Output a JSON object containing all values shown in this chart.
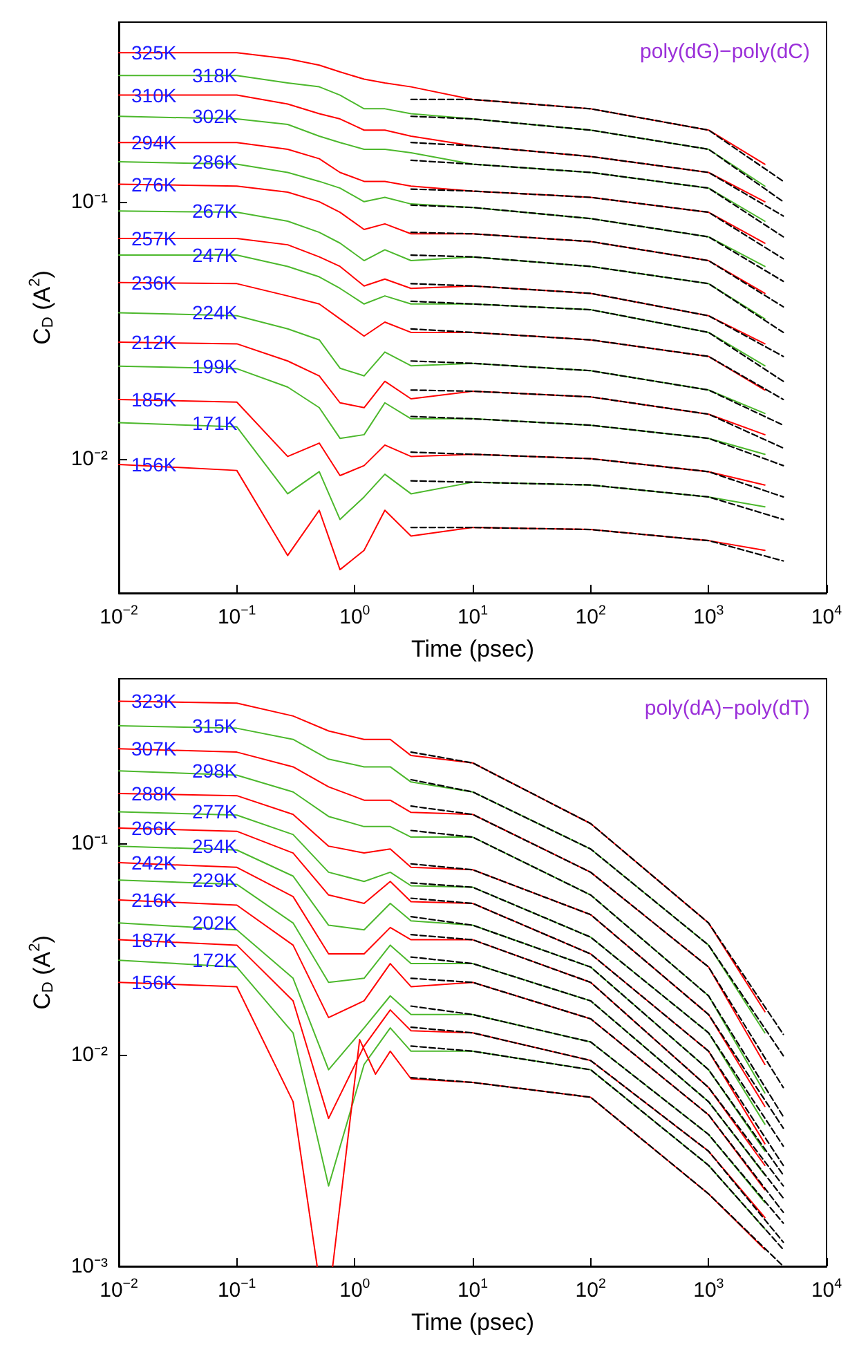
{
  "chart_data": [
    {
      "type": "line",
      "xlabel": "Time (psec)",
      "ylabel": "C$_{D}$ (A$^{2}$)",
      "annotations": [
        "poly(dG)−poly(dC)"
      ],
      "log": "xy",
      "marker": "none",
      "xlim": [
        0.01,
        10000
      ],
      "ylim": [
        0.003,
        0.5
      ],
      "xticks": [
        {
          "value": 0.01,
          "label": "10$^{−2}$"
        },
        {
          "value": 0.1,
          "label": "10$^{−1}$"
        },
        {
          "value": 1,
          "label": "10$^{0}$"
        },
        {
          "value": 10,
          "label": "10$^{1}$"
        },
        {
          "value": 100,
          "label": "10$^{2}$"
        },
        {
          "value": 1000,
          "label": "10$^{3}$"
        },
        {
          "value": 10000,
          "label": "10$^{4}$"
        }
      ],
      "yticks": [
        {
          "value": 0.01,
          "label": "10⁻²"
        },
        {
          "value": 0.1,
          "label": "10⁻¹"
        }
      ],
      "x": [
        0.01,
        0.1,
        0.27,
        0.5,
        0.75,
        1.2,
        1.8,
        3,
        10,
        100,
        1000,
        3000
      ],
      "series": [
        {
          "name": "325K",
          "color": "#ff0000",
          "values": [
            0.38,
            0.38,
            0.36,
            0.34,
            0.32,
            0.3,
            0.29,
            0.28,
            0.25,
            0.23,
            0.19,
            0.14
          ]
        },
        {
          "name": "318K",
          "color": "#4cb82c",
          "values": [
            0.31,
            0.31,
            0.29,
            0.28,
            0.26,
            0.23,
            0.23,
            0.22,
            0.21,
            0.19,
            0.16,
            0.115
          ]
        },
        {
          "name": "310K",
          "color": "#ff0000",
          "values": [
            0.26,
            0.26,
            0.24,
            0.22,
            0.21,
            0.19,
            0.19,
            0.18,
            0.165,
            0.15,
            0.13,
            0.1
          ]
        },
        {
          "name": "302K",
          "color": "#4cb82c",
          "values": [
            0.215,
            0.21,
            0.2,
            0.18,
            0.17,
            0.16,
            0.16,
            0.155,
            0.14,
            0.13,
            0.113,
            0.084
          ]
        },
        {
          "name": "294K",
          "color": "#ff0000",
          "values": [
            0.17,
            0.17,
            0.16,
            0.147,
            0.13,
            0.12,
            0.12,
            0.115,
            0.11,
            0.104,
            0.091,
            0.069
          ]
        },
        {
          "name": "286K",
          "color": "#4cb82c",
          "values": [
            0.143,
            0.14,
            0.13,
            0.12,
            0.113,
            0.1,
            0.104,
            0.098,
            0.095,
            0.086,
            0.073,
            0.056
          ]
        },
        {
          "name": "276K",
          "color": "#ff0000",
          "values": [
            0.117,
            0.115,
            0.109,
            0.1,
            0.091,
            0.078,
            0.082,
            0.075,
            0.075,
            0.07,
            0.059,
            0.044
          ]
        },
        {
          "name": "267K",
          "color": "#4cb82c",
          "values": [
            0.092,
            0.091,
            0.084,
            0.076,
            0.069,
            0.059,
            0.065,
            0.059,
            0.061,
            0.056,
            0.048,
            0.035
          ]
        },
        {
          "name": "257K",
          "color": "#ff0000",
          "values": [
            0.072,
            0.072,
            0.068,
            0.061,
            0.056,
            0.047,
            0.05,
            0.046,
            0.047,
            0.044,
            0.036,
            0.028
          ]
        },
        {
          "name": "247K",
          "color": "#4cb82c",
          "values": [
            0.062,
            0.062,
            0.056,
            0.051,
            0.046,
            0.04,
            0.043,
            0.04,
            0.04,
            0.038,
            0.031,
            0.023
          ]
        },
        {
          "name": "236K",
          "color": "#ff0000",
          "values": [
            0.0485,
            0.048,
            0.043,
            0.04,
            0.035,
            0.03,
            0.034,
            0.031,
            0.031,
            0.029,
            0.025,
            0.0185
          ]
        },
        {
          "name": "224K",
          "color": "#4cb82c",
          "values": [
            0.037,
            0.036,
            0.032,
            0.029,
            0.0225,
            0.021,
            0.026,
            0.023,
            0.0235,
            0.022,
            0.0185,
            0.015
          ]
        },
        {
          "name": "212K",
          "color": "#ff0000",
          "values": [
            0.0284,
            0.028,
            0.024,
            0.021,
            0.0165,
            0.0158,
            0.02,
            0.0171,
            0.0183,
            0.0174,
            0.0149,
            0.0124
          ]
        },
        {
          "name": "199K",
          "color": "#4cb82c",
          "values": [
            0.0229,
            0.0224,
            0.019,
            0.0158,
            0.012,
            0.0124,
            0.0165,
            0.0143,
            0.0143,
            0.0135,
            0.012,
            0.0104
          ]
        },
        {
          "name": "185K",
          "color": "#ff0000",
          "values": [
            0.017,
            0.0166,
            0.0102,
            0.0115,
            0.0086,
            0.0094,
            0.0113,
            0.0102,
            0.0104,
            0.01,
            0.0089,
            0.0079
          ]
        },
        {
          "name": "171K",
          "color": "#4cb82c",
          "values": [
            0.0138,
            0.0133,
            0.0073,
            0.0089,
            0.0058,
            0.0071,
            0.0087,
            0.0073,
            0.0081,
            0.0079,
            0.0071,
            0.0065
          ]
        },
        {
          "name": "156K",
          "color": "#ff0000",
          "values": [
            0.0095,
            0.009,
            0.0042,
            0.0063,
            0.0037,
            0.0044,
            0.0063,
            0.005,
            0.0054,
            0.0053,
            0.0048,
            0.0044
          ]
        },
        {
          "type": "line",
          "line_style": "dashed",
          "color": "#000000",
          "x": [
            3,
            10,
            100,
            1000,
            4300
          ],
          "values": [
            0.25,
            0.25,
            0.23,
            0.19,
            0.12
          ]
        },
        {
          "type": "line",
          "line_style": "dashed",
          "color": "#000000",
          "x": [
            3,
            10,
            100,
            1000,
            4300
          ],
          "values": [
            0.215,
            0.21,
            0.19,
            0.16,
            0.1
          ]
        },
        {
          "type": "line",
          "line_style": "dashed",
          "color": "#000000",
          "x": [
            3,
            10,
            100,
            1000,
            4300
          ],
          "values": [
            0.17,
            0.165,
            0.15,
            0.13,
            0.088
          ]
        },
        {
          "type": "line",
          "line_style": "dashed",
          "color": "#000000",
          "x": [
            3,
            10,
            100,
            1000,
            4300
          ],
          "values": [
            0.145,
            0.14,
            0.13,
            0.113,
            0.073
          ]
        },
        {
          "type": "line",
          "line_style": "dashed",
          "color": "#000000",
          "x": [
            3,
            10,
            100,
            1000,
            4300
          ],
          "values": [
            0.112,
            0.11,
            0.104,
            0.091,
            0.06
          ]
        },
        {
          "type": "line",
          "line_style": "dashed",
          "color": "#000000",
          "x": [
            3,
            10,
            100,
            1000,
            4300
          ],
          "values": [
            0.097,
            0.095,
            0.086,
            0.073,
            0.049
          ]
        },
        {
          "type": "line",
          "line_style": "dashed",
          "color": "#000000",
          "x": [
            3,
            10,
            100,
            1000,
            4300
          ],
          "values": [
            0.076,
            0.075,
            0.07,
            0.059,
            0.039
          ]
        },
        {
          "type": "line",
          "line_style": "dashed",
          "color": "#000000",
          "x": [
            3,
            10,
            100,
            1000,
            4300
          ],
          "values": [
            0.062,
            0.061,
            0.056,
            0.048,
            0.031
          ]
        },
        {
          "type": "line",
          "line_style": "dashed",
          "color": "#000000",
          "x": [
            3,
            10,
            100,
            1000,
            4300
          ],
          "values": [
            0.048,
            0.047,
            0.044,
            0.036,
            0.025
          ]
        },
        {
          "type": "line",
          "line_style": "dashed",
          "color": "#000000",
          "x": [
            3,
            10,
            100,
            1000,
            4300
          ],
          "values": [
            0.041,
            0.04,
            0.038,
            0.031,
            0.02
          ]
        },
        {
          "type": "line",
          "line_style": "dashed",
          "color": "#000000",
          "x": [
            3,
            10,
            100,
            1000,
            4300
          ],
          "values": [
            0.032,
            0.031,
            0.029,
            0.025,
            0.017
          ]
        },
        {
          "type": "line",
          "line_style": "dashed",
          "color": "#000000",
          "x": [
            3,
            10,
            100,
            1000,
            4300
          ],
          "values": [
            0.024,
            0.0235,
            0.022,
            0.0185,
            0.0135
          ]
        },
        {
          "type": "line",
          "line_style": "dashed",
          "color": "#000000",
          "x": [
            3,
            10,
            100,
            1000,
            4300
          ],
          "values": [
            0.0185,
            0.0183,
            0.0174,
            0.0149,
            0.011
          ]
        },
        {
          "type": "line",
          "line_style": "dashed",
          "color": "#000000",
          "x": [
            3,
            10,
            100,
            1000,
            4300
          ],
          "values": [
            0.0146,
            0.0143,
            0.0135,
            0.012,
            0.0094
          ]
        },
        {
          "type": "line",
          "line_style": "dashed",
          "color": "#000000",
          "x": [
            3,
            10,
            100,
            1000,
            4300
          ],
          "values": [
            0.0106,
            0.0104,
            0.01,
            0.0089,
            0.0071
          ]
        },
        {
          "type": "line",
          "line_style": "dashed",
          "color": "#000000",
          "x": [
            3,
            10,
            100,
            1000,
            4300
          ],
          "values": [
            0.0082,
            0.0081,
            0.0079,
            0.0071,
            0.0058
          ]
        },
        {
          "type": "line",
          "line_style": "dashed",
          "color": "#000000",
          "x": [
            3,
            10,
            100,
            1000,
            4300
          ],
          "values": [
            0.0054,
            0.0054,
            0.0053,
            0.0048,
            0.004
          ]
        }
      ]
    },
    {
      "type": "line",
      "xlabel": "Time (psec)",
      "ylabel": "C$_{D}$ (A$^{2}$)",
      "annotations": [
        "poly(dA)−poly(dT)"
      ],
      "log": "xy",
      "marker": "none",
      "xlim": [
        0.01,
        10000
      ],
      "ylim": [
        0.001,
        0.6
      ],
      "xticks": [
        {
          "value": 0.01,
          "label": "10$^{−2}$"
        },
        {
          "value": 0.1,
          "label": "10$^{−1}$"
        },
        {
          "value": 1,
          "label": "10$^{0}$"
        },
        {
          "value": 10,
          "label": "10$^{1}$"
        },
        {
          "value": 100,
          "label": "10$^{2}$"
        },
        {
          "value": 1000,
          "label": "10$^{3}$"
        },
        {
          "value": 10000,
          "label": "10$^{4}$"
        }
      ],
      "yticks": [
        {
          "value": 0.001,
          "label": "10⁻³"
        },
        {
          "value": 0.01,
          "label": "10⁻²"
        },
        {
          "value": 0.1,
          "label": "10⁻¹"
        }
      ],
      "x": [
        0.01,
        0.1,
        0.3,
        0.6,
        1.2,
        2,
        3,
        10,
        100,
        1000,
        3000
      ],
      "series": [
        {
          "name": "323K",
          "color": "#ff0000",
          "values": [
            0.47,
            0.46,
            0.4,
            0.34,
            0.31,
            0.31,
            0.26,
            0.24,
            0.124,
            0.042,
            0.016
          ]
        },
        {
          "name": "315K",
          "color": "#4cb82c",
          "values": [
            0.36,
            0.35,
            0.31,
            0.25,
            0.23,
            0.23,
            0.195,
            0.175,
            0.094,
            0.033,
            0.0127
          ]
        },
        {
          "name": "307K",
          "color": "#ff0000",
          "values": [
            0.28,
            0.27,
            0.23,
            0.185,
            0.16,
            0.16,
            0.14,
            0.137,
            0.073,
            0.026,
            0.009
          ]
        },
        {
          "name": "298K",
          "color": "#4cb82c",
          "values": [
            0.22,
            0.21,
            0.175,
            0.134,
            0.12,
            0.12,
            0.107,
            0.107,
            0.057,
            0.019,
            0.0066
          ]
        },
        {
          "name": "288K",
          "color": "#ff0000",
          "values": [
            0.172,
            0.168,
            0.137,
            0.097,
            0.09,
            0.094,
            0.077,
            0.075,
            0.046,
            0.0155,
            0.0057
          ]
        },
        {
          "name": "277K",
          "color": "#4cb82c",
          "values": [
            0.141,
            0.136,
            0.11,
            0.073,
            0.066,
            0.073,
            0.063,
            0.062,
            0.036,
            0.0127,
            0.0047
          ]
        },
        {
          "name": "266K",
          "color": "#ff0000",
          "values": [
            0.118,
            0.114,
            0.09,
            0.057,
            0.052,
            0.066,
            0.053,
            0.052,
            0.03,
            0.0104,
            0.0038
          ]
        },
        {
          "name": "254K",
          "color": "#4cb82c",
          "values": [
            0.097,
            0.093,
            0.07,
            0.041,
            0.039,
            0.052,
            0.043,
            0.041,
            0.026,
            0.0085,
            0.0035
          ]
        },
        {
          "name": "242K",
          "color": "#ff0000",
          "values": [
            0.081,
            0.077,
            0.056,
            0.03,
            0.03,
            0.04,
            0.035,
            0.035,
            0.022,
            0.007,
            0.003
          ]
        },
        {
          "name": "229K",
          "color": "#4cb82c",
          "values": [
            0.067,
            0.064,
            0.042,
            0.022,
            0.023,
            0.033,
            0.027,
            0.027,
            0.018,
            0.006,
            0.0027
          ]
        },
        {
          "name": "216K",
          "color": "#ff0000",
          "values": [
            0.054,
            0.051,
            0.033,
            0.015,
            0.018,
            0.027,
            0.021,
            0.022,
            0.0148,
            0.0052,
            0.0023
          ]
        },
        {
          "name": "202K",
          "color": "#4cb82c",
          "values": [
            0.042,
            0.039,
            0.023,
            0.0085,
            0.0134,
            0.019,
            0.0155,
            0.0155,
            0.0115,
            0.0042,
            0.002
          ]
        },
        {
          "name": "187K",
          "color": "#ff0000",
          "values": [
            0.035,
            0.033,
            0.018,
            0.005,
            0.011,
            0.0163,
            0.013,
            0.0127,
            0.0094,
            0.0035,
            0.0017
          ]
        },
        {
          "name": "172K",
          "color": "#4cb82c",
          "values": [
            0.028,
            0.026,
            0.0127,
            0.0024,
            0.009,
            0.0134,
            0.0104,
            0.0104,
            0.0085,
            0.003,
            0.0015
          ]
        },
        {
          "name": "156K",
          "color": "#ff0000",
          "x": [
            0.01,
            0.1,
            0.3,
            0.48,
            0.56,
            0.65,
            1.1,
            1.5,
            2,
            3,
            10,
            100,
            1000,
            3000
          ],
          "values": [
            0.022,
            0.021,
            0.006,
            0.001,
            null,
            0.001,
            0.0118,
            0.0081,
            0.0104,
            0.0077,
            0.0074,
            0.0063,
            0.0022,
            0.0012
          ]
        },
        {
          "type": "line",
          "line_style": "dashed",
          "color": "#000000",
          "x": [
            3,
            10,
            100,
            1000,
            4300
          ],
          "values": [
            0.27,
            0.24,
            0.124,
            0.042,
            0.0125
          ]
        },
        {
          "type": "line",
          "line_style": "dashed",
          "color": "#000000",
          "x": [
            3,
            10,
            100,
            1000,
            4300
          ],
          "values": [
            0.2,
            0.175,
            0.094,
            0.033,
            0.0099
          ]
        },
        {
          "type": "line",
          "line_style": "dashed",
          "color": "#000000",
          "x": [
            3,
            10,
            100,
            1000,
            4300
          ],
          "values": [
            0.15,
            0.137,
            0.073,
            0.026,
            0.007
          ]
        },
        {
          "type": "line",
          "line_style": "dashed",
          "color": "#000000",
          "x": [
            3,
            10,
            100,
            1000,
            4300
          ],
          "values": [
            0.115,
            0.107,
            0.057,
            0.019,
            0.0051
          ]
        },
        {
          "type": "line",
          "line_style": "dashed",
          "color": "#000000",
          "x": [
            3,
            10,
            100,
            1000,
            4300
          ],
          "values": [
            0.08,
            0.075,
            0.046,
            0.0155,
            0.0045
          ]
        },
        {
          "type": "line",
          "line_style": "dashed",
          "color": "#000000",
          "x": [
            3,
            10,
            100,
            1000,
            4300
          ],
          "values": [
            0.065,
            0.062,
            0.036,
            0.0127,
            0.0037
          ]
        },
        {
          "type": "line",
          "line_style": "dashed",
          "color": "#000000",
          "x": [
            3,
            10,
            100,
            1000,
            4300
          ],
          "values": [
            0.055,
            0.052,
            0.03,
            0.0104,
            0.003
          ]
        },
        {
          "type": "line",
          "line_style": "dashed",
          "color": "#000000",
          "x": [
            3,
            10,
            100,
            1000,
            4300
          ],
          "values": [
            0.045,
            0.041,
            0.026,
            0.0085,
            0.0027
          ]
        },
        {
          "type": "line",
          "line_style": "dashed",
          "color": "#000000",
          "x": [
            3,
            10,
            100,
            1000,
            4300
          ],
          "values": [
            0.037,
            0.035,
            0.022,
            0.007,
            0.0024
          ]
        },
        {
          "type": "line",
          "line_style": "dashed",
          "color": "#000000",
          "x": [
            3,
            10,
            100,
            1000,
            4300
          ],
          "values": [
            0.029,
            0.027,
            0.018,
            0.006,
            0.0021
          ]
        },
        {
          "type": "line",
          "line_style": "dashed",
          "color": "#000000",
          "x": [
            3,
            10,
            100,
            1000,
            4300
          ],
          "values": [
            0.023,
            0.022,
            0.0148,
            0.0052,
            0.0018
          ]
        },
        {
          "type": "line",
          "line_style": "dashed",
          "color": "#000000",
          "x": [
            3,
            10,
            100,
            1000,
            4300
          ],
          "values": [
            0.017,
            0.0155,
            0.0115,
            0.0042,
            0.0016
          ]
        },
        {
          "type": "line",
          "line_style": "dashed",
          "color": "#000000",
          "x": [
            3,
            10,
            100,
            1000,
            4300
          ],
          "values": [
            0.0135,
            0.0127,
            0.0094,
            0.0035,
            0.0013
          ]
        },
        {
          "type": "line",
          "line_style": "dashed",
          "color": "#000000",
          "x": [
            3,
            10,
            100,
            1000,
            4300
          ],
          "values": [
            0.011,
            0.0104,
            0.0085,
            0.003,
            0.0012
          ]
        },
        {
          "type": "line",
          "line_style": "dashed",
          "color": "#000000",
          "x": [
            3,
            10,
            100,
            1000,
            4300
          ],
          "values": [
            0.0078,
            0.0074,
            0.0063,
            0.0022,
            0.001
          ]
        }
      ]
    }
  ]
}
